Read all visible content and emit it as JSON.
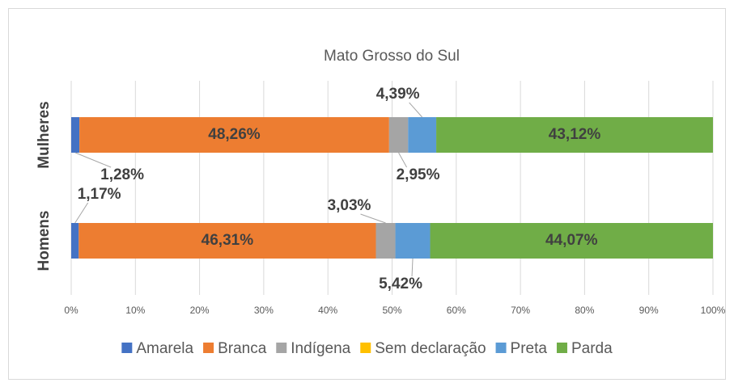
{
  "chart_data": {
    "type": "stacked_barh",
    "title": "Mato Grosso do Sul",
    "categories": [
      "Mulheres",
      "Homens"
    ],
    "series": [
      {
        "name": "Amarela",
        "color": "#4472c4",
        "values": [
          1.28,
          1.17
        ],
        "value_labels": [
          "1,28%",
          "1,17%"
        ]
      },
      {
        "name": "Branca",
        "color": "#ed7d31",
        "values": [
          48.26,
          46.31
        ],
        "value_labels": [
          "48,26%",
          "46,31%"
        ]
      },
      {
        "name": "Indígena",
        "color": "#a5a5a5",
        "values": [
          2.95,
          3.03
        ],
        "value_labels": [
          "2,95%",
          "3,03%"
        ]
      },
      {
        "name": "Sem declaração",
        "color": "#ffc000",
        "values": [
          0,
          0
        ],
        "value_labels": [
          null,
          null
        ]
      },
      {
        "name": "Preta",
        "color": "#5b9bd5",
        "values": [
          4.39,
          5.42
        ],
        "value_labels": [
          "4,39%",
          "5,42%"
        ]
      },
      {
        "name": "Parda",
        "color": "#70ad47",
        "values": [
          43.12,
          44.07
        ],
        "value_labels": [
          "43,12%",
          "44,07%"
        ]
      }
    ],
    "xlim": [
      0,
      100
    ],
    "xticks": [
      {
        "value": 0,
        "label": "0%"
      },
      {
        "value": 10,
        "label": "10%"
      },
      {
        "value": 20,
        "label": "20%"
      },
      {
        "value": 30,
        "label": "30%"
      },
      {
        "value": 40,
        "label": "40%"
      },
      {
        "value": 50,
        "label": "50%"
      },
      {
        "value": 60,
        "label": "60%"
      },
      {
        "value": 70,
        "label": "70%"
      },
      {
        "value": 80,
        "label": "80%"
      },
      {
        "value": 90,
        "label": "90%"
      },
      {
        "value": 100,
        "label": "100%"
      }
    ],
    "grid": true,
    "legend": "bottom"
  }
}
